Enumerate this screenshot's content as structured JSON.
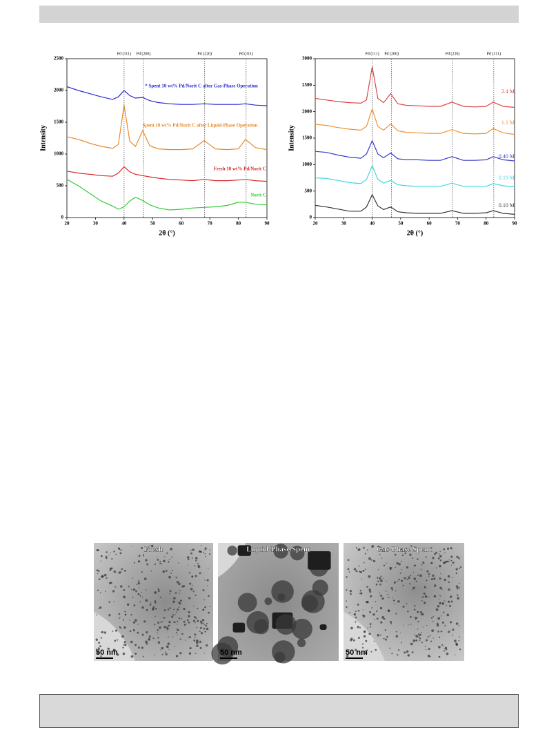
{
  "chart_data": [
    {
      "type": "line",
      "xlabel": "2θ (°)",
      "ylabel": "Intensity",
      "x": [
        20,
        24,
        28,
        32,
        36,
        38,
        40,
        42,
        44,
        46.5,
        49,
        52,
        56,
        60,
        64,
        68,
        72,
        76,
        80,
        82.5,
        86,
        90
      ],
      "xlim": [
        20,
        90
      ],
      "xticks": [
        20,
        30,
        40,
        50,
        60,
        70,
        80,
        90
      ],
      "ylim": [
        0,
        2500
      ],
      "yticks": [
        0,
        500,
        1000,
        1500,
        2000,
        2500
      ],
      "reference_lines": [
        {
          "x": 40,
          "label": "Pd (111)"
        },
        {
          "x": 46.8,
          "label": "Pd (200)"
        },
        {
          "x": 68.2,
          "label": "Pd (220)"
        },
        {
          "x": 82.7,
          "label": "Pd (311)"
        }
      ],
      "series": [
        {
          "name": "* Spent 10 wt% Pd/Norit C after Gas-Phase Operation",
          "color": "#2a2ad0",
          "values": [
            2060,
            2000,
            1950,
            1900,
            1860,
            1900,
            2000,
            1920,
            1880,
            1890,
            1840,
            1810,
            1790,
            1780,
            1780,
            1790,
            1780,
            1780,
            1780,
            1790,
            1770,
            1760
          ]
        },
        {
          "name": "Spent 10 wt% Pd/Norit C after Liquid-Phase Operation",
          "color": "#e8892a",
          "values": [
            1270,
            1230,
            1170,
            1120,
            1090,
            1150,
            1770,
            1200,
            1120,
            1370,
            1130,
            1080,
            1070,
            1070,
            1080,
            1210,
            1080,
            1070,
            1080,
            1230,
            1100,
            1070
          ]
        },
        {
          "name": "Fresh 10 wt% Pd/Norit C",
          "color": "#d42a2a",
          "values": [
            730,
            700,
            680,
            660,
            650,
            700,
            800,
            720,
            680,
            660,
            640,
            620,
            600,
            590,
            580,
            600,
            580,
            580,
            590,
            600,
            580,
            570
          ]
        },
        {
          "name": "Norit C",
          "color": "#33cc33",
          "values": [
            600,
            500,
            380,
            260,
            180,
            130,
            170,
            260,
            320,
            270,
            200,
            150,
            120,
            130,
            150,
            160,
            170,
            190,
            240,
            240,
            210,
            200
          ]
        }
      ]
    },
    {
      "type": "line",
      "xlabel": "2θ (°)",
      "ylabel": "Intensity",
      "x": [
        20,
        24,
        28,
        32,
        36,
        38,
        40,
        42,
        44,
        46.5,
        49,
        52,
        56,
        60,
        64,
        68,
        72,
        76,
        80,
        82.5,
        86,
        90
      ],
      "xlim": [
        20,
        90
      ],
      "xticks": [
        20,
        30,
        40,
        50,
        60,
        70,
        80,
        90
      ],
      "ylim": [
        0,
        3000
      ],
      "yticks": [
        0,
        500,
        1000,
        1500,
        2000,
        2500,
        3000
      ],
      "reference_lines": [
        {
          "x": 40,
          "label": "Pd (111)"
        },
        {
          "x": 46.8,
          "label": "Pd (200)"
        },
        {
          "x": 68.2,
          "label": "Pd (220)"
        },
        {
          "x": 82.7,
          "label": "Pd (311)"
        }
      ],
      "series": [
        {
          "name": "2.4 M",
          "color": "#d94545",
          "values": [
            2250,
            2220,
            2190,
            2170,
            2160,
            2220,
            2850,
            2250,
            2170,
            2340,
            2150,
            2120,
            2110,
            2100,
            2100,
            2180,
            2100,
            2090,
            2100,
            2180,
            2100,
            2080
          ]
        },
        {
          "name": "1.1 M",
          "color": "#f0922e",
          "values": [
            1760,
            1740,
            1700,
            1670,
            1650,
            1720,
            2050,
            1720,
            1650,
            1770,
            1640,
            1610,
            1600,
            1590,
            1590,
            1660,
            1590,
            1580,
            1590,
            1680,
            1600,
            1570
          ]
        },
        {
          "name": "0.40 M",
          "color": "#3a3ac8",
          "values": [
            1250,
            1230,
            1180,
            1140,
            1120,
            1200,
            1450,
            1200,
            1130,
            1220,
            1110,
            1090,
            1090,
            1080,
            1080,
            1150,
            1080,
            1080,
            1090,
            1150,
            1090,
            1070
          ]
        },
        {
          "name": "0.19 M",
          "color": "#3fd6e0",
          "values": [
            750,
            740,
            700,
            660,
            640,
            720,
            980,
            720,
            650,
            700,
            620,
            600,
            590,
            590,
            590,
            650,
            590,
            590,
            590,
            640,
            600,
            580
          ]
        },
        {
          "name": "0.10 M",
          "color": "#333333",
          "values": [
            230,
            200,
            160,
            120,
            120,
            200,
            430,
            220,
            150,
            200,
            110,
            90,
            80,
            80,
            80,
            130,
            80,
            80,
            90,
            130,
            80,
            60
          ]
        }
      ]
    }
  ],
  "tem_panels": [
    {
      "label": "Fresh",
      "scale": "50 nm"
    },
    {
      "label": "Liquid-Phase Spent",
      "scale": "50 nm"
    },
    {
      "label": "Gas-Phase Spent",
      "scale": "50 nm"
    }
  ]
}
